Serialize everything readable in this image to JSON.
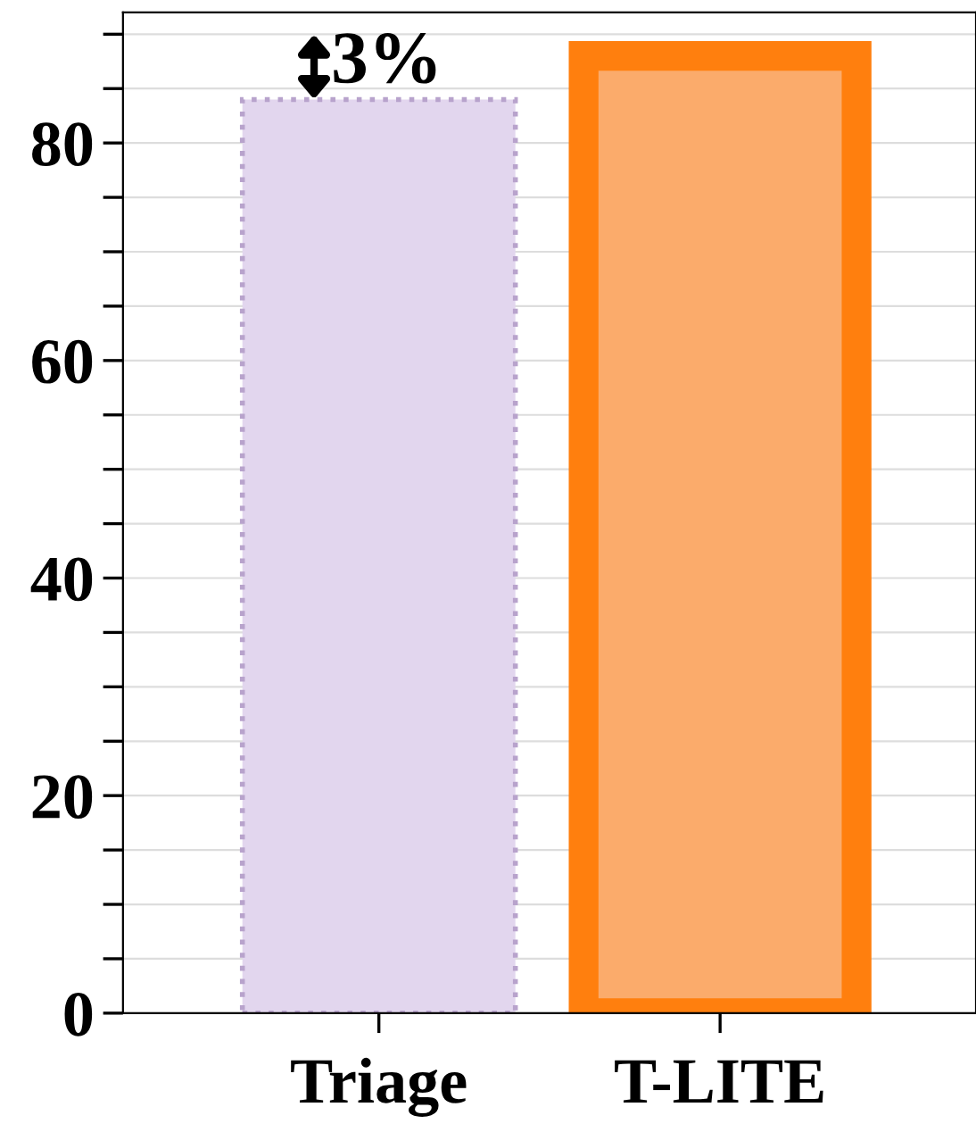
{
  "chart_data": {
    "type": "bar",
    "categories": [
      "Triage",
      "T-LITE"
    ],
    "values": [
      84,
      88
    ],
    "colors": [
      "#e2d6ee",
      "#fbab6b"
    ],
    "ylim": [
      0,
      92
    ],
    "yticks": [
      0,
      {
        "value": 5,
        "label": null
      },
      {
        "value": 10,
        "label": null
      },
      {
        "value": 15,
        "label": null
      },
      20,
      {
        "value": 25,
        "label": null
      },
      {
        "value": 30,
        "label": null
      },
      {
        "value": 35,
        "label": null
      },
      40,
      {
        "value": 45,
        "label": null
      },
      {
        "value": 50,
        "label": null
      },
      {
        "value": 55,
        "label": null
      },
      60,
      {
        "value": 65,
        "label": null
      },
      {
        "value": 70,
        "label": null
      },
      {
        "value": 75,
        "label": null
      },
      80,
      {
        "value": 85,
        "label": null
      },
      {
        "value": 90,
        "label": null
      }
    ],
    "grid": "y",
    "annotations": [
      "3%"
    ]
  }
}
